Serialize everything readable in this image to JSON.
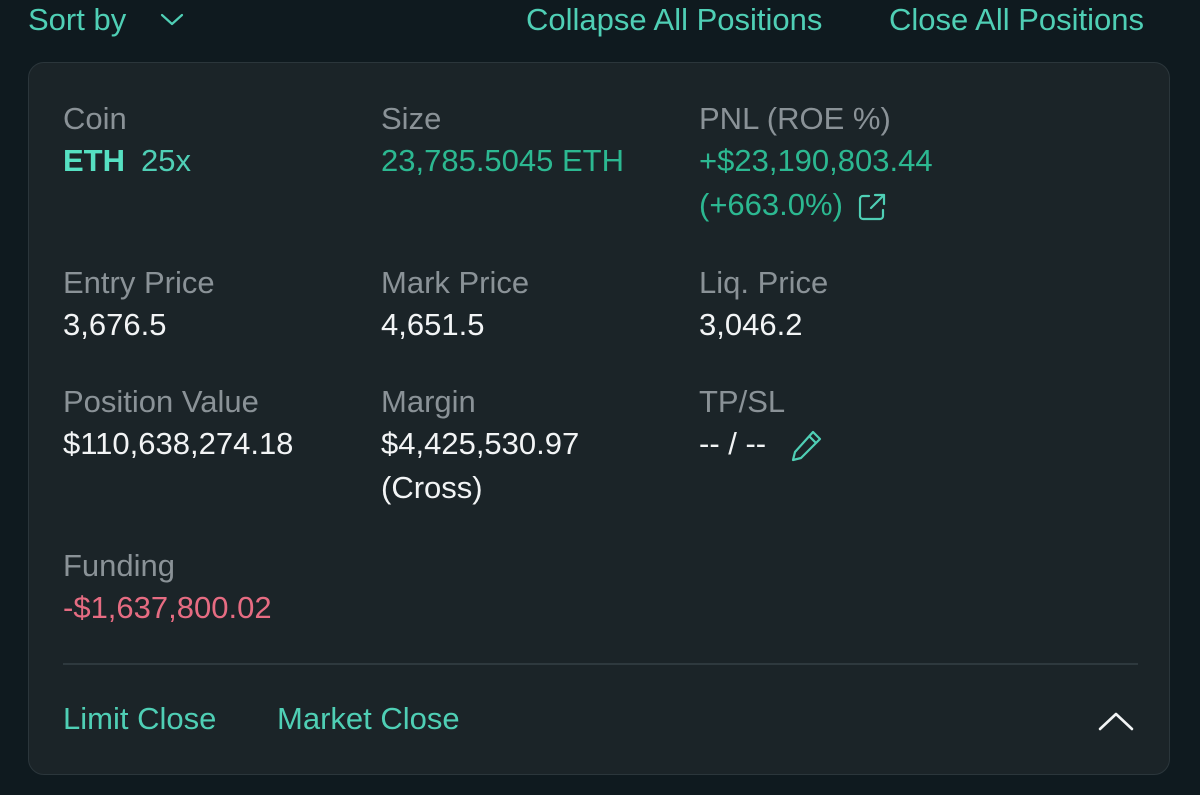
{
  "header": {
    "sort_label": "Sort by",
    "collapse_all_label": "Collapse All Positions",
    "close_all_label": "Close All Positions"
  },
  "position": {
    "coin": {
      "label": "Coin",
      "symbol": "ETH",
      "leverage": "25x"
    },
    "size": {
      "label": "Size",
      "value": "23,785.5045 ETH"
    },
    "pnl": {
      "label": "PNL (ROE %)",
      "value": "+$23,190,803.44",
      "roe": "(+663.0%)"
    },
    "entry_price": {
      "label": "Entry Price",
      "value": "3,676.5"
    },
    "mark_price": {
      "label": "Mark Price",
      "value": "4,651.5"
    },
    "liq_price": {
      "label": "Liq. Price",
      "value": "3,046.2"
    },
    "position_value": {
      "label": "Position Value",
      "value": "$110,638,274.18"
    },
    "margin": {
      "label": "Margin",
      "value": "$4,425,530.97",
      "mode": "(Cross)"
    },
    "tpsl": {
      "label": "TP/SL",
      "value": "-- / --"
    },
    "funding": {
      "label": "Funding",
      "value": "-$1,637,800.02"
    }
  },
  "actions": {
    "limit_close_label": "Limit Close",
    "market_close_label": "Market Close"
  },
  "icons": {
    "sort": "chevron-down-icon",
    "share": "external-link-icon",
    "edit": "pencil-icon",
    "collapse": "chevron-up-icon"
  },
  "colors": {
    "background": "#0f1a1f",
    "card": "#1b2428",
    "accent": "#4fcfb5",
    "positive": "#2cb891",
    "negative": "#e66c82",
    "label": "#8a9297",
    "text": "#f2f4f5"
  }
}
